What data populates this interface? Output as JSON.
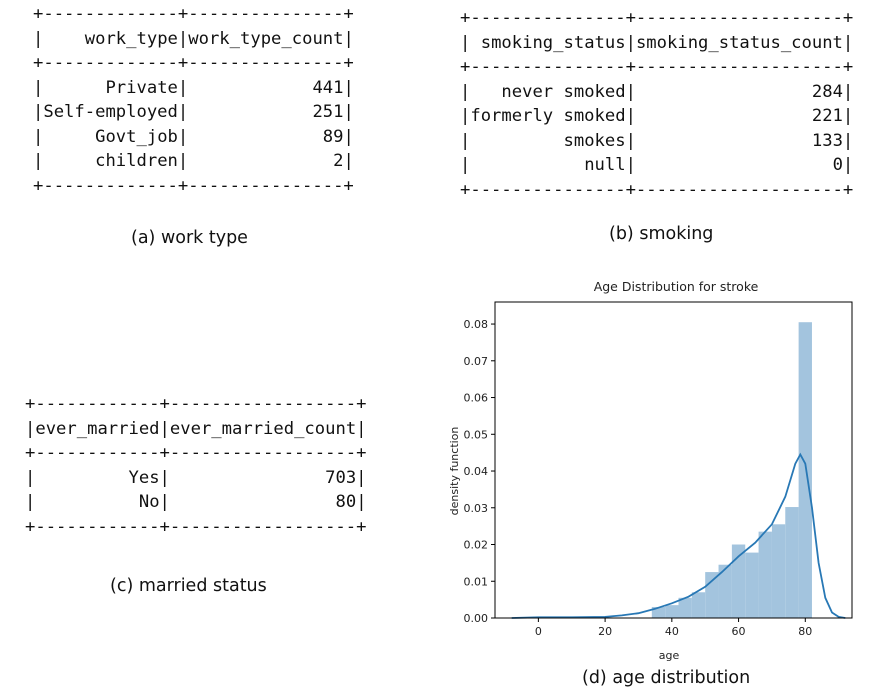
{
  "tables": {
    "work_type": {
      "headers": [
        "work_type",
        "work_type_count"
      ],
      "rows": [
        [
          "Private",
          "441"
        ],
        [
          "Self-employed",
          "251"
        ],
        [
          "Govt_job",
          "89"
        ],
        [
          "children",
          "2"
        ]
      ],
      "caption": "(a) work type"
    },
    "smoking": {
      "headers": [
        "smoking_status",
        "smoking_status_count"
      ],
      "rows": [
        [
          "never smoked",
          "284"
        ],
        [
          "formerly smoked",
          "221"
        ],
        [
          "smokes",
          "133"
        ],
        [
          "null",
          "0"
        ]
      ],
      "caption": "(b) smoking"
    },
    "married": {
      "headers": [
        "ever_married",
        "ever_married_count"
      ],
      "rows": [
        [
          "Yes",
          "703"
        ],
        [
          "No",
          "80"
        ]
      ],
      "caption": "(c) married status"
    }
  },
  "chart_caption": "(d) age distribution",
  "colors": {
    "bar": "#a3c4de",
    "kde": "#2878b5",
    "axis": "#000000"
  },
  "chart_data": {
    "type": "bar",
    "title": "Age Distribution for stroke",
    "xlabel": "age",
    "ylabel": "density function",
    "xlim": [
      -13,
      94
    ],
    "ylim": [
      0,
      0.086
    ],
    "xticks": [
      0,
      20,
      40,
      60,
      80
    ],
    "yticks": [
      0.0,
      0.01,
      0.02,
      0.03,
      0.04,
      0.05,
      0.06,
      0.07,
      0.08
    ],
    "ytick_labels": [
      "0.00",
      "0.01",
      "0.02",
      "0.03",
      "0.04",
      "0.05",
      "0.06",
      "0.07",
      "0.08"
    ],
    "bins": [
      {
        "x0": 34,
        "x1": 38,
        "value": 0.003
      },
      {
        "x0": 38,
        "x1": 42,
        "value": 0.0035
      },
      {
        "x0": 42,
        "x1": 46,
        "value": 0.0055
      },
      {
        "x0": 46,
        "x1": 50,
        "value": 0.007
      },
      {
        "x0": 50,
        "x1": 54,
        "value": 0.0125
      },
      {
        "x0": 54,
        "x1": 58,
        "value": 0.0145
      },
      {
        "x0": 58,
        "x1": 62,
        "value": 0.02
      },
      {
        "x0": 62,
        "x1": 66,
        "value": 0.0178
      },
      {
        "x0": 66,
        "x1": 70,
        "value": 0.0235
      },
      {
        "x0": 70,
        "x1": 74,
        "value": 0.0255
      },
      {
        "x0": 74,
        "x1": 78,
        "value": 0.0302
      },
      {
        "x0": 78,
        "x1": 82,
        "value": 0.0805
      }
    ],
    "kde": [
      [
        -8,
        0
      ],
      [
        0,
        0.0002
      ],
      [
        10,
        0.0002
      ],
      [
        20,
        0.0003
      ],
      [
        25,
        0.0007
      ],
      [
        30,
        0.0013
      ],
      [
        35,
        0.0025
      ],
      [
        40,
        0.004
      ],
      [
        45,
        0.0058
      ],
      [
        50,
        0.0085
      ],
      [
        55,
        0.0125
      ],
      [
        60,
        0.0168
      ],
      [
        65,
        0.0205
      ],
      [
        70,
        0.0255
      ],
      [
        74,
        0.033
      ],
      [
        77,
        0.042
      ],
      [
        78.5,
        0.0445
      ],
      [
        80,
        0.042
      ],
      [
        82,
        0.03
      ],
      [
        84,
        0.015
      ],
      [
        86,
        0.0055
      ],
      [
        88,
        0.0015
      ],
      [
        90,
        0.0003
      ],
      [
        92,
        0
      ]
    ]
  }
}
